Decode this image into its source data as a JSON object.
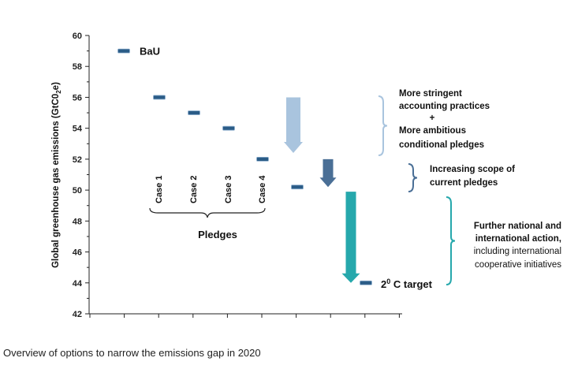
{
  "chart_data": {
    "type": "scatter",
    "ylabel_main": "Global greenhouse gas emissions  (GtC0",
    "ylabel_sub": "2",
    "ylabel_end": "e)",
    "ylim": [
      42,
      60
    ],
    "yticks": [
      42,
      44,
      46,
      48,
      50,
      52,
      54,
      56,
      58,
      60
    ],
    "points": [
      {
        "label": "BaU",
        "value": 59
      },
      {
        "label": "Case 1",
        "value": 56
      },
      {
        "label": "Case 2",
        "value": 55
      },
      {
        "label": "Case 3",
        "value": 54
      },
      {
        "label": "Case 4",
        "value": 52
      },
      {
        "label": "",
        "value": 50.2
      },
      {
        "label": "2⁰ C target",
        "value": 44
      }
    ],
    "group_label": "Pledges",
    "arrows": [
      {
        "from": 56,
        "to": 52.4,
        "color": "#a9c4de"
      },
      {
        "from": 52,
        "to": 50.2,
        "color": "#4a6f96"
      },
      {
        "from": 49.9,
        "to": 44,
        "color": "#26a8ac"
      }
    ],
    "annotations": {
      "a1": {
        "lines": [
          "More stringent",
          "accounting practices",
          "+",
          "More ambitious",
          "conditional pledges"
        ],
        "color": "#a9c4de"
      },
      "a2": {
        "lines": [
          "Increasing scope of",
          "current pledges"
        ],
        "color": "#4a6f96"
      },
      "a3": {
        "lines": [
          "Further national and",
          "international action,",
          "including international",
          "cooperative  initiatives"
        ],
        "color": "#26a8ac"
      }
    },
    "target_label_main": "2",
    "target_label_sup": "0",
    "target_label_end": " C target",
    "bau_label": "BaU",
    "marker_color": "#2b5c87",
    "grid": false
  },
  "caption": "Overview of options to narrow the emissions gap in 2020"
}
